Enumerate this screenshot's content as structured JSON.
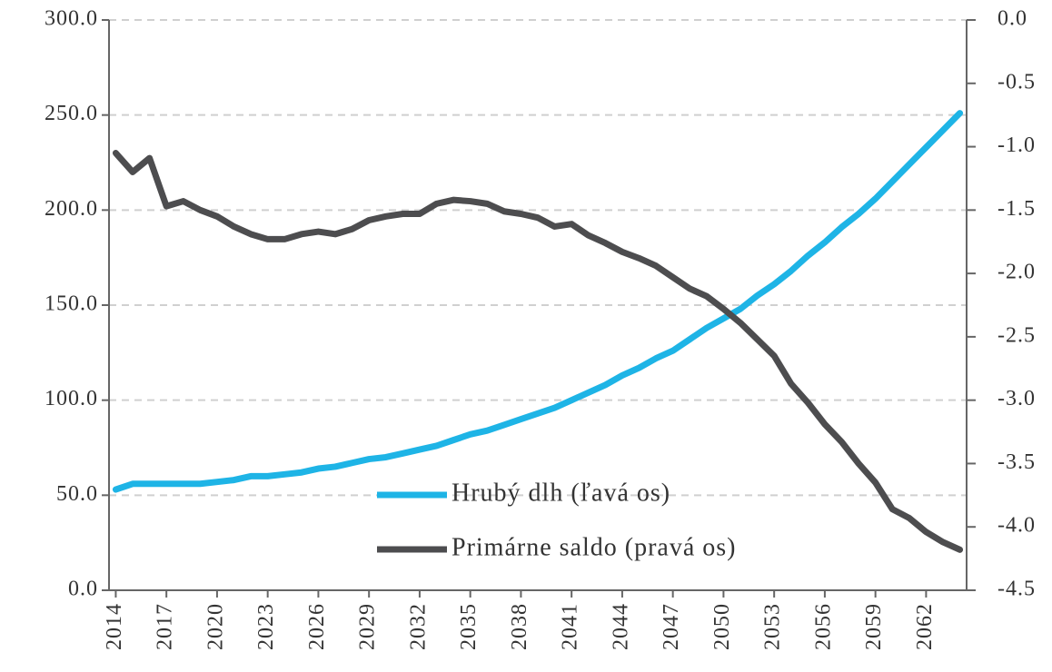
{
  "chart_data": {
    "type": "line",
    "x": [
      2014,
      2015,
      2016,
      2017,
      2018,
      2019,
      2020,
      2021,
      2022,
      2023,
      2024,
      2025,
      2026,
      2027,
      2028,
      2029,
      2030,
      2031,
      2032,
      2033,
      2034,
      2035,
      2036,
      2037,
      2038,
      2039,
      2040,
      2041,
      2042,
      2043,
      2044,
      2045,
      2046,
      2047,
      2048,
      2049,
      2050,
      2051,
      2052,
      2053,
      2054,
      2055,
      2056,
      2057,
      2058,
      2059,
      2060,
      2061,
      2062,
      2063,
      2064
    ],
    "xlim": [
      2013.6,
      2064.4
    ],
    "xticks": [
      2014,
      2017,
      2020,
      2023,
      2026,
      2029,
      2032,
      2035,
      2038,
      2041,
      2044,
      2047,
      2050,
      2053,
      2056,
      2059,
      2062
    ],
    "ylim": [
      0,
      300
    ],
    "yticks": [
      {
        "value": 0,
        "label": "0.0"
      },
      {
        "value": 50,
        "label": "50.0"
      },
      {
        "value": 100,
        "label": "100.0"
      },
      {
        "value": 150,
        "label": "150.0"
      },
      {
        "value": 200,
        "label": "200.0"
      },
      {
        "value": 250,
        "label": "250.0"
      },
      {
        "value": 300,
        "label": "300.0"
      }
    ],
    "y2lim": [
      -4.5,
      0
    ],
    "y2ticks": [
      {
        "value": 0,
        "label": "0.0"
      },
      -0.5,
      {
        "value": -1,
        "label": "-1.0"
      },
      -1.5,
      {
        "value": -2,
        "label": "-2.0"
      },
      -2.5,
      {
        "value": -3,
        "label": "-3.0"
      },
      -3.5,
      {
        "value": -4,
        "label": "-4.0"
      },
      -4.5
    ],
    "grid": true,
    "legend": "bottom-center",
    "series": [
      {
        "name": "Hrubý dlh (ľavá os)",
        "color": "#1eb4e6",
        "values": [
          53,
          56,
          56,
          56,
          56,
          56,
          57,
          58,
          60,
          60,
          61,
          62,
          64,
          65,
          67,
          69,
          70,
          72,
          74,
          76,
          79,
          82,
          84,
          87,
          90,
          93,
          96,
          100,
          104,
          108,
          113,
          117,
          122,
          126,
          132,
          138,
          143,
          148,
          155,
          161,
          168,
          176,
          183,
          191,
          198,
          206,
          215,
          224,
          233,
          242,
          251
        ]
      },
      {
        "name": "Primárne saldo (pravá os)",
        "color": "#4d4d4f",
        "axis": "y2",
        "values": [
          -1.05,
          -1.2,
          -1.09,
          -1.47,
          -1.43,
          -1.5,
          -1.55,
          -1.63,
          -1.69,
          -1.73,
          -1.73,
          -1.69,
          -1.67,
          -1.69,
          -1.65,
          -1.58,
          -1.55,
          -1.53,
          -1.53,
          -1.45,
          -1.42,
          -1.43,
          -1.45,
          -1.51,
          -1.53,
          -1.56,
          -1.63,
          -1.61,
          -1.7,
          -1.76,
          -1.83,
          -1.88,
          -1.94,
          -2.03,
          -2.12,
          -2.18,
          -2.28,
          -2.39,
          -2.52,
          -2.65,
          -2.87,
          -3.02,
          -3.19,
          -3.33,
          -3.5,
          -3.65,
          -3.86,
          -3.93,
          -4.04,
          -4.12,
          -4.18
        ]
      }
    ]
  }
}
